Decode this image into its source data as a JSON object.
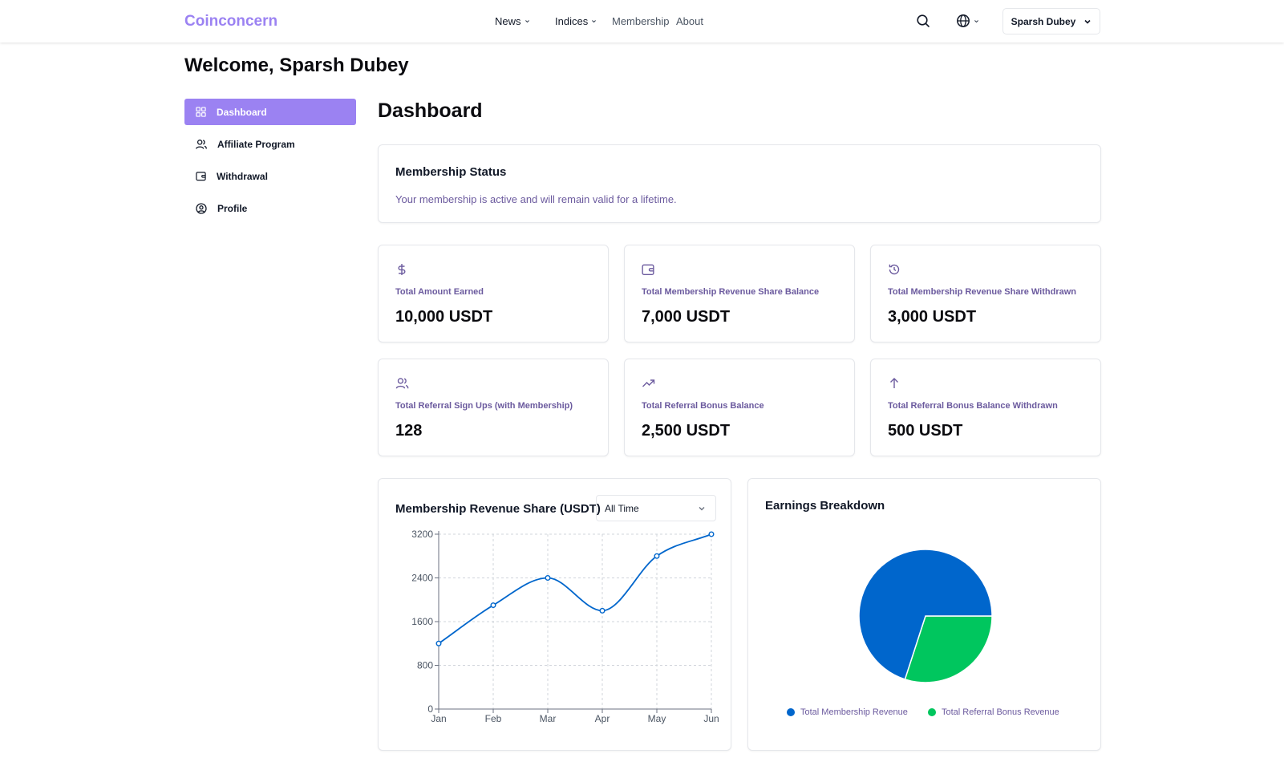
{
  "header": {
    "logo": "Coinconcern",
    "nav": [
      {
        "label": "News"
      },
      {
        "label": "Indices"
      },
      {
        "label": "Membership"
      },
      {
        "label": "About"
      }
    ],
    "user_name": "Sparsh Dubey"
  },
  "welcome": "Welcome, Sparsh Dubey",
  "sidebar": {
    "items": [
      {
        "label": "Dashboard",
        "icon": "grid-icon",
        "active": true
      },
      {
        "label": "Affiliate Program",
        "icon": "users-icon"
      },
      {
        "label": "Withdrawal",
        "icon": "wallet-icon"
      },
      {
        "label": "Profile",
        "icon": "user-circle-icon"
      }
    ]
  },
  "page_title": "Dashboard",
  "membership_status": {
    "title": "Membership Status",
    "text": "Your membership is active and will remain valid for a lifetime."
  },
  "stats": [
    {
      "label": "Total Amount Earned",
      "value": "10,000 USDT",
      "icon": "dollar-icon"
    },
    {
      "label": "Total Membership Revenue Share Balance",
      "value": "7,000 USDT",
      "icon": "wallet-icon"
    },
    {
      "label": "Total Membership Revenue Share Withdrawn",
      "value": "3,000 USDT",
      "icon": "history-icon"
    },
    {
      "label": "Total Referral Sign Ups (with Membership)",
      "value": "128",
      "icon": "users-icon"
    },
    {
      "label": "Total Referral Bonus Balance",
      "value": "2,500 USDT",
      "icon": "trending-up-icon"
    },
    {
      "label": "Total Referral Bonus Balance Withdrawn",
      "value": "500 USDT",
      "icon": "arrow-up-icon"
    }
  ],
  "revenue_chart": {
    "title": "Membership Revenue Share (USDT)",
    "filter": "All Time"
  },
  "earnings": {
    "title": "Earnings Breakdown"
  },
  "colors": {
    "accent": "#9b82f2",
    "membership": "#0066cc",
    "referral": "#00c65e"
  },
  "chart_data": [
    {
      "type": "line",
      "title": "Membership Revenue Share (USDT)",
      "categories": [
        "Jan",
        "Feb",
        "Mar",
        "Apr",
        "May",
        "Jun"
      ],
      "series": [
        {
          "values": [
            1200,
            1900,
            2400,
            1800,
            2800,
            3200
          ]
        }
      ],
      "y_ticks": [
        0,
        800,
        1600,
        2400,
        3200
      ],
      "ylim": [
        0,
        3200
      ],
      "grid": true,
      "smooth": true,
      "color": "#0066cc"
    },
    {
      "type": "pie",
      "title": "Earnings Breakdown",
      "labels": [
        "Total Membership Revenue",
        "Total Referral Bonus Revenue"
      ],
      "values": [
        70,
        30
      ],
      "colors": [
        "#0066cc",
        "#00c65e"
      ],
      "legend": "bottom"
    }
  ]
}
